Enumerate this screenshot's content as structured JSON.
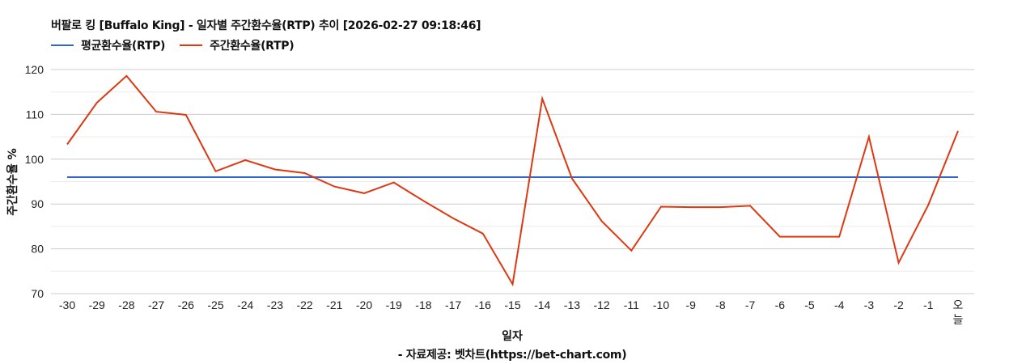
{
  "header": {
    "title": "버팔로 킹 [Buffalo King] - 일자별 주간환수율(RTP) 추이 [2026-02-27 09:18:46]"
  },
  "legend": {
    "items": [
      {
        "label": "평균환수율(RTP)",
        "color": "#3366cc"
      },
      {
        "label": "주간환수율(RTP)",
        "color": "#dc3912"
      }
    ]
  },
  "axes": {
    "ylabel": "주간환수율 %",
    "xlabel": "일자"
  },
  "footer": {
    "source": "- 자료제공: 벳차트(https://bet-chart.com)"
  },
  "chart_data": {
    "type": "line",
    "title": "버팔로 킹 [Buffalo King] - 일자별 주간환수율(RTP) 추이 [2026-02-27 09:18:46]",
    "xlabel": "일자",
    "ylabel": "주간환수율 %",
    "ylim": [
      70,
      120
    ],
    "yticks": [
      70,
      80,
      90,
      100,
      110,
      120
    ],
    "grid": true,
    "legend_position": "top-left",
    "categories": [
      "-30",
      "-29",
      "-28",
      "-27",
      "-26",
      "-25",
      "-24",
      "-23",
      "-22",
      "-21",
      "-20",
      "-19",
      "-18",
      "-17",
      "-16",
      "-15",
      "-14",
      "-13",
      "-12",
      "-11",
      "-10",
      "-9",
      "-8",
      "-7",
      "-6",
      "-5",
      "-4",
      "-3",
      "-2",
      "-1",
      "오늘"
    ],
    "series": [
      {
        "name": "평균환수율(RTP)",
        "color": "#3366cc",
        "values": [
          96.0,
          96.0,
          96.0,
          96.0,
          96.0,
          96.0,
          96.0,
          96.0,
          96.0,
          96.0,
          96.0,
          96.0,
          96.0,
          96.0,
          96.0,
          96.0,
          96.0,
          96.0,
          96.0,
          96.0,
          96.0,
          96.0,
          96.0,
          96.0,
          96.0,
          96.0,
          96.0,
          96.0,
          96.0,
          96.0,
          96.0
        ]
      },
      {
        "name": "주간환수율(RTP)",
        "color": "#dc3912",
        "values": [
          103.3,
          112.6,
          118.6,
          110.6,
          109.9,
          97.3,
          99.8,
          97.7,
          96.9,
          93.9,
          92.4,
          94.8,
          90.7,
          86.8,
          83.4,
          72.1,
          113.5,
          95.7,
          86.2,
          79.6,
          89.4,
          89.3,
          89.3,
          89.6,
          82.7,
          82.7,
          82.7,
          105.0,
          76.9,
          89.8,
          106.3
        ]
      }
    ]
  }
}
